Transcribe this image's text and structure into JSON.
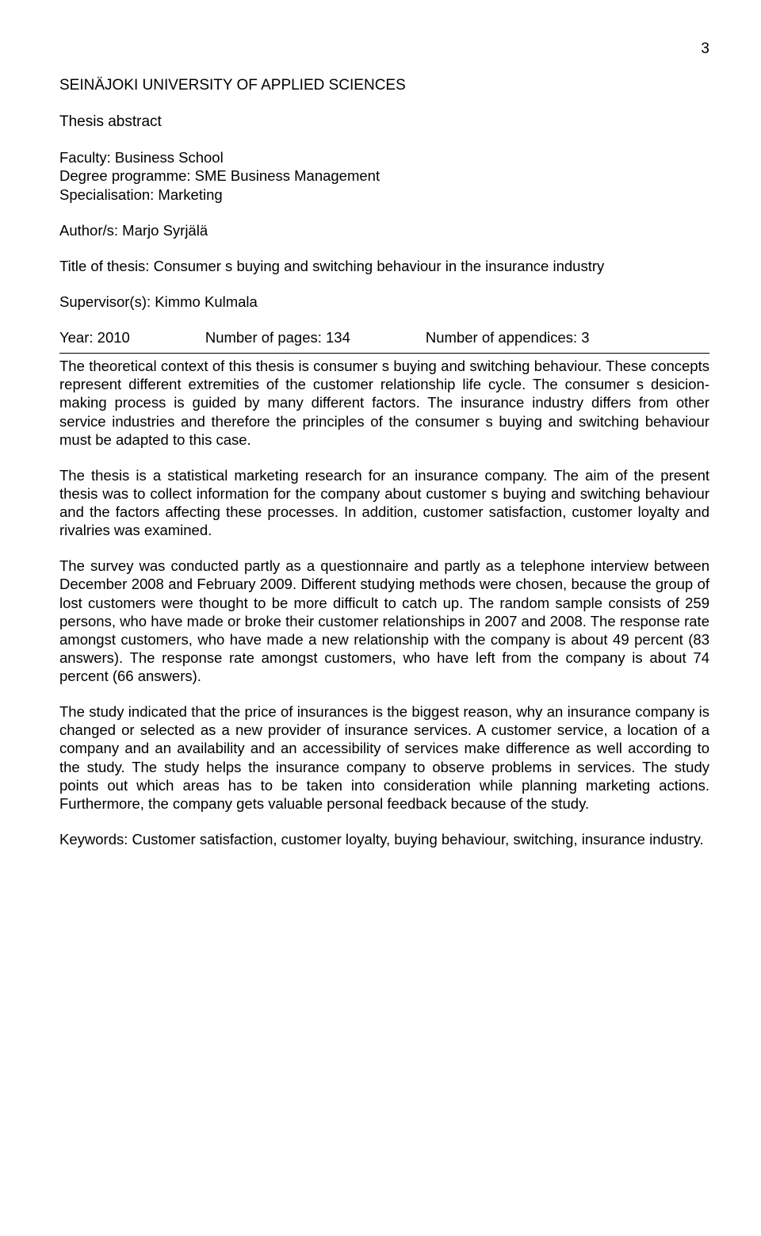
{
  "page_number": "3",
  "university_name": "SEINÄJOKI UNIVERSITY OF APPLIED SCIENCES",
  "subtitle": "Thesis abstract",
  "meta": {
    "faculty": "Faculty: Business School",
    "degree_programme": "Degree programme: SME Business Management",
    "specialisation": "Specialisation: Marketing",
    "author": "Author/s: Marjo Syrjälä",
    "title_of_thesis": "Title of thesis: Consumer s buying and switching behaviour in the insurance industry",
    "supervisor": "Supervisor(s): Kimmo Kulmala",
    "year_label": "Year: 2010",
    "pages_label": "Number of pages: 134",
    "appendices_label": "Number of appendices: 3"
  },
  "paragraphs": {
    "p1": "The theoretical context of this thesis is consumer s buying and switching behaviour. These concepts represent different extremities of the customer relationship life cycle. The consumer s desicion-making process is guided by many different factors. The insurance industry differs from other service industries and therefore the principles of the consumer s buying and switching behaviour must be adapted to this case.",
    "p2": "The thesis is a statistical marketing research for an insurance company. The aim of the present thesis was to collect information for the company about customer s buying and switching behaviour and the factors affecting these processes. In addition, customer satisfaction, customer loyalty and rivalries was examined.",
    "p3": "The survey was conducted partly as a questionnaire and partly as a telephone interview between December 2008 and February 2009. Different studying methods were chosen, because the group of lost customers were thought to be more difficult to catch up. The random sample consists of 259 persons, who have made or broke their customer relationships in  2007 and 2008. The response rate amongst customers, who have made a new relationship with the company is about 49 percent (83 answers). The response rate amongst customers, who have left from the company is about 74 percent (66 answers).",
    "p4": "The study indicated that the price of insurances is the biggest reason, why an insurance company is changed or selected as a new provider of insurance services. A customer service, a location of a company and an availability and an accessibility of services make difference as well according to the study. The study helps the insurance company to observe problems in services. The study points out which areas has to be taken into consideration while planning marketing actions. Furthermore, the company gets valuable personal feedback because of the study.",
    "keywords": "Keywords: Customer satisfaction, customer loyalty, buying behaviour, switching, insurance industry."
  }
}
